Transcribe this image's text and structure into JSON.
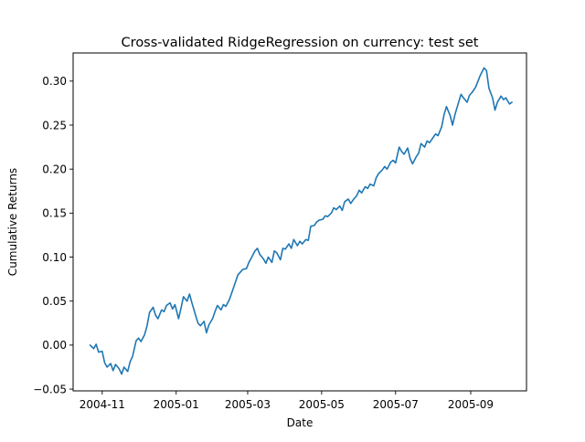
{
  "chart_data": {
    "type": "line",
    "title": "Cross-validated RidgeRegression on currency: test set",
    "xlabel": "Date",
    "ylabel": "Cumulative Returns",
    "xlim": [
      "2004-10-08",
      "2005-10-17"
    ],
    "ylim": [
      -0.052,
      0.332
    ],
    "x_ticks": [
      "2004-11-01",
      "2005-01-01",
      "2005-03-01",
      "2005-05-01",
      "2005-07-01",
      "2005-09-01"
    ],
    "x_tick_labels": [
      "2004-11",
      "2005-01",
      "2005-03",
      "2005-05",
      "2005-07",
      "2005-09"
    ],
    "y_ticks": [
      -0.05,
      0.0,
      0.05,
      0.1,
      0.15,
      0.2,
      0.25,
      0.3
    ],
    "y_tick_labels": [
      "−0.05",
      "0.00",
      "0.05",
      "0.10",
      "0.15",
      "0.20",
      "0.25",
      "0.30"
    ],
    "grid": false,
    "series": [
      {
        "color": "#1f77b4",
        "points": [
          [
            "2004-10-22",
            0.0
          ],
          [
            "2004-10-25",
            -0.004
          ],
          [
            "2004-10-27",
            0.001
          ],
          [
            "2004-10-29",
            -0.008
          ],
          [
            "2004-11-01",
            -0.007
          ],
          [
            "2004-11-03",
            -0.02
          ],
          [
            "2004-11-05",
            -0.025
          ],
          [
            "2004-11-08",
            -0.021
          ],
          [
            "2004-11-10",
            -0.029
          ],
          [
            "2004-11-12",
            -0.022
          ],
          [
            "2004-11-15",
            -0.027
          ],
          [
            "2004-11-17",
            -0.033
          ],
          [
            "2004-11-19",
            -0.025
          ],
          [
            "2004-11-22",
            -0.03
          ],
          [
            "2004-11-24",
            -0.019
          ],
          [
            "2004-11-26",
            -0.013
          ],
          [
            "2004-11-29",
            0.005
          ],
          [
            "2004-12-01",
            0.008
          ],
          [
            "2004-12-03",
            0.004
          ],
          [
            "2004-12-06",
            0.012
          ],
          [
            "2004-12-08",
            0.022
          ],
          [
            "2004-12-10",
            0.037
          ],
          [
            "2004-12-13",
            0.043
          ],
          [
            "2004-12-15",
            0.034
          ],
          [
            "2004-12-17",
            0.03
          ],
          [
            "2004-12-20",
            0.04
          ],
          [
            "2004-12-22",
            0.038
          ],
          [
            "2004-12-24",
            0.045
          ],
          [
            "2004-12-27",
            0.048
          ],
          [
            "2004-12-29",
            0.041
          ],
          [
            "2004-12-31",
            0.046
          ],
          [
            "2005-01-03",
            0.03
          ],
          [
            "2005-01-05",
            0.042
          ],
          [
            "2005-01-07",
            0.055
          ],
          [
            "2005-01-10",
            0.05
          ],
          [
            "2005-01-12",
            0.058
          ],
          [
            "2005-01-14",
            0.048
          ],
          [
            "2005-01-17",
            0.034
          ],
          [
            "2005-01-19",
            0.025
          ],
          [
            "2005-01-21",
            0.022
          ],
          [
            "2005-01-24",
            0.027
          ],
          [
            "2005-01-26",
            0.014
          ],
          [
            "2005-01-28",
            0.023
          ],
          [
            "2005-01-31",
            0.03
          ],
          [
            "2005-02-02",
            0.038
          ],
          [
            "2005-02-04",
            0.045
          ],
          [
            "2005-02-07",
            0.04
          ],
          [
            "2005-02-09",
            0.046
          ],
          [
            "2005-02-11",
            0.044
          ],
          [
            "2005-02-14",
            0.052
          ],
          [
            "2005-02-16",
            0.06
          ],
          [
            "2005-02-18",
            0.068
          ],
          [
            "2005-02-21",
            0.08
          ],
          [
            "2005-02-23",
            0.083
          ],
          [
            "2005-02-25",
            0.086
          ],
          [
            "2005-02-28",
            0.087
          ],
          [
            "2005-03-02",
            0.094
          ],
          [
            "2005-03-04",
            0.099
          ],
          [
            "2005-03-07",
            0.107
          ],
          [
            "2005-03-09",
            0.11
          ],
          [
            "2005-03-11",
            0.103
          ],
          [
            "2005-03-14",
            0.098
          ],
          [
            "2005-03-16",
            0.093
          ],
          [
            "2005-03-18",
            0.1
          ],
          [
            "2005-03-21",
            0.094
          ],
          [
            "2005-03-23",
            0.107
          ],
          [
            "2005-03-25",
            0.105
          ],
          [
            "2005-03-28",
            0.097
          ],
          [
            "2005-03-30",
            0.11
          ],
          [
            "2005-04-01",
            0.109
          ],
          [
            "2005-04-04",
            0.115
          ],
          [
            "2005-04-06",
            0.11
          ],
          [
            "2005-04-08",
            0.12
          ],
          [
            "2005-04-11",
            0.113
          ],
          [
            "2005-04-13",
            0.118
          ],
          [
            "2005-04-15",
            0.115
          ],
          [
            "2005-04-18",
            0.12
          ],
          [
            "2005-04-20",
            0.119
          ],
          [
            "2005-04-22",
            0.135
          ],
          [
            "2005-04-25",
            0.136
          ],
          [
            "2005-04-27",
            0.14
          ],
          [
            "2005-04-29",
            0.142
          ],
          [
            "2005-05-02",
            0.143
          ],
          [
            "2005-05-04",
            0.147
          ],
          [
            "2005-05-06",
            0.146
          ],
          [
            "2005-05-09",
            0.15
          ],
          [
            "2005-05-11",
            0.156
          ],
          [
            "2005-05-13",
            0.154
          ],
          [
            "2005-05-16",
            0.158
          ],
          [
            "2005-05-18",
            0.153
          ],
          [
            "2005-05-20",
            0.163
          ],
          [
            "2005-05-23",
            0.166
          ],
          [
            "2005-05-25",
            0.161
          ],
          [
            "2005-05-27",
            0.165
          ],
          [
            "2005-05-30",
            0.17
          ],
          [
            "2005-06-01",
            0.176
          ],
          [
            "2005-06-03",
            0.173
          ],
          [
            "2005-06-06",
            0.18
          ],
          [
            "2005-06-08",
            0.178
          ],
          [
            "2005-06-10",
            0.183
          ],
          [
            "2005-06-13",
            0.181
          ],
          [
            "2005-06-15",
            0.19
          ],
          [
            "2005-06-17",
            0.195
          ],
          [
            "2005-06-20",
            0.199
          ],
          [
            "2005-06-22",
            0.203
          ],
          [
            "2005-06-24",
            0.2
          ],
          [
            "2005-06-27",
            0.208
          ],
          [
            "2005-06-29",
            0.21
          ],
          [
            "2005-07-01",
            0.207
          ],
          [
            "2005-07-04",
            0.225
          ],
          [
            "2005-07-06",
            0.22
          ],
          [
            "2005-07-08",
            0.217
          ],
          [
            "2005-07-11",
            0.224
          ],
          [
            "2005-07-13",
            0.212
          ],
          [
            "2005-07-15",
            0.206
          ],
          [
            "2005-07-18",
            0.214
          ],
          [
            "2005-07-20",
            0.218
          ],
          [
            "2005-07-22",
            0.229
          ],
          [
            "2005-07-25",
            0.225
          ],
          [
            "2005-07-27",
            0.232
          ],
          [
            "2005-07-29",
            0.23
          ],
          [
            "2005-08-01",
            0.236
          ],
          [
            "2005-08-03",
            0.24
          ],
          [
            "2005-08-05",
            0.238
          ],
          [
            "2005-08-08",
            0.248
          ],
          [
            "2005-08-10",
            0.262
          ],
          [
            "2005-08-12",
            0.271
          ],
          [
            "2005-08-15",
            0.261
          ],
          [
            "2005-08-17",
            0.25
          ],
          [
            "2005-08-19",
            0.262
          ],
          [
            "2005-08-22",
            0.276
          ],
          [
            "2005-08-24",
            0.285
          ],
          [
            "2005-08-26",
            0.281
          ],
          [
            "2005-08-29",
            0.276
          ],
          [
            "2005-08-31",
            0.284
          ],
          [
            "2005-09-02",
            0.287
          ],
          [
            "2005-09-05",
            0.293
          ],
          [
            "2005-09-07",
            0.3
          ],
          [
            "2005-09-09",
            0.307
          ],
          [
            "2005-09-12",
            0.315
          ],
          [
            "2005-09-14",
            0.312
          ],
          [
            "2005-09-16",
            0.292
          ],
          [
            "2005-09-19",
            0.281
          ],
          [
            "2005-09-21",
            0.267
          ],
          [
            "2005-09-23",
            0.276
          ],
          [
            "2005-09-26",
            0.283
          ],
          [
            "2005-09-28",
            0.279
          ],
          [
            "2005-09-30",
            0.281
          ],
          [
            "2005-10-03",
            0.274
          ],
          [
            "2005-10-05",
            0.276
          ]
        ]
      }
    ]
  }
}
